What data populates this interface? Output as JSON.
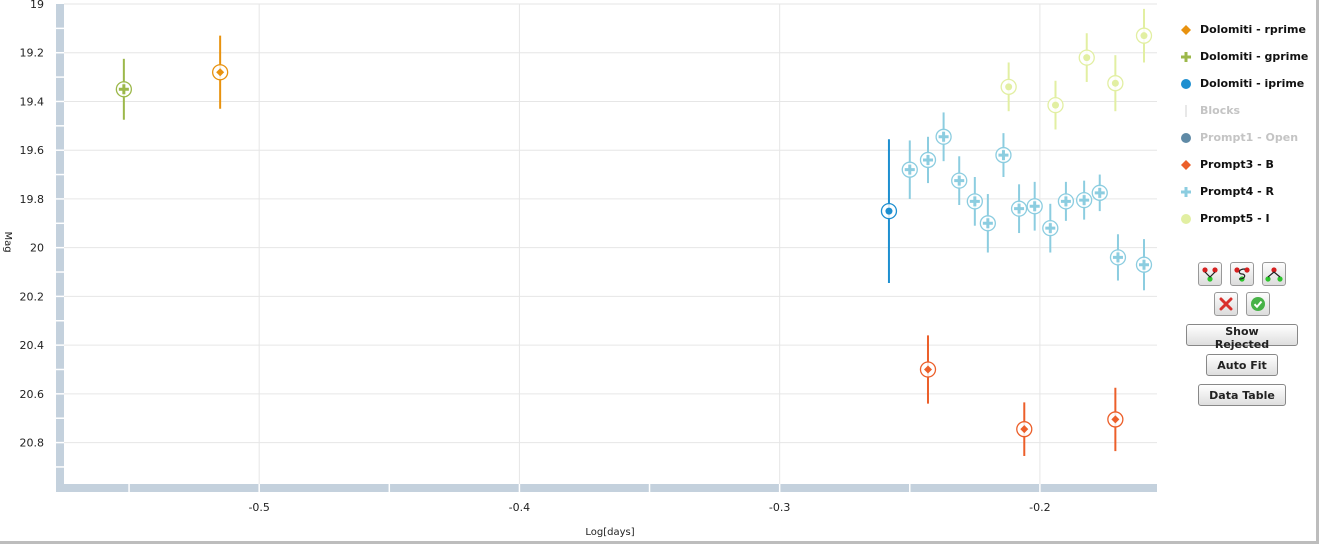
{
  "chart_data": {
    "type": "scatter",
    "xlabel": "Log[days]",
    "ylabel": "Mag",
    "xlim": [
      -0.575,
      -0.155
    ],
    "ylim": [
      19.0,
      20.97
    ],
    "y_inverted": true,
    "x_ticks": [
      -0.5,
      -0.4,
      -0.3,
      -0.2
    ],
    "x_tick_labels": [
      "-0.5",
      "-0.4",
      "-0.3",
      "-0.2"
    ],
    "y_ticks": [
      19.0,
      19.2,
      19.4,
      19.6,
      19.8,
      20.0,
      20.2,
      20.4,
      20.6,
      20.8
    ],
    "y_tick_labels": [
      "19",
      "19.2",
      "19.4",
      "19.6",
      "19.8",
      "20",
      "20.2",
      "20.4",
      "20.6",
      "20.8"
    ],
    "grid": true,
    "legend_position": "right",
    "series": [
      {
        "name": "Dolomiti - rprime",
        "color": "#e8920f",
        "marker": "diamond",
        "visible": true,
        "points": [
          {
            "x": -0.515,
            "y": 19.28,
            "err": 0.15
          }
        ]
      },
      {
        "name": "Dolomiti - gprime",
        "color": "#9cb84a",
        "marker": "plus",
        "visible": true,
        "points": [
          {
            "x": -0.552,
            "y": 19.35,
            "err": 0.125
          }
        ]
      },
      {
        "name": "Dolomiti - iprime",
        "color": "#1e8fd0",
        "marker": "circle",
        "visible": true,
        "points": [
          {
            "x": -0.258,
            "y": 19.85,
            "err": 0.295
          }
        ]
      },
      {
        "name": "Blocks",
        "color": "#d0d0d0",
        "marker": "line",
        "visible": false,
        "points": []
      },
      {
        "name": "Prompt1 - Open",
        "color": "#5f8aa6",
        "marker": "circle",
        "visible": false,
        "points": []
      },
      {
        "name": "Prompt3 - B",
        "color": "#ec5f2a",
        "marker": "diamond",
        "visible": true,
        "points": [
          {
            "x": -0.243,
            "y": 20.5,
            "err": 0.14
          },
          {
            "x": -0.206,
            "y": 20.745,
            "err": 0.11
          },
          {
            "x": -0.171,
            "y": 20.705,
            "err": 0.13
          }
        ]
      },
      {
        "name": "Prompt4 - R",
        "color": "#8ccde0",
        "marker": "plus",
        "visible": true,
        "points": [
          {
            "x": -0.25,
            "y": 19.68,
            "err": 0.12
          },
          {
            "x": -0.243,
            "y": 19.64,
            "err": 0.095
          },
          {
            "x": -0.237,
            "y": 19.545,
            "err": 0.1
          },
          {
            "x": -0.231,
            "y": 19.725,
            "err": 0.1
          },
          {
            "x": -0.225,
            "y": 19.81,
            "err": 0.1
          },
          {
            "x": -0.22,
            "y": 19.9,
            "err": 0.12
          },
          {
            "x": -0.214,
            "y": 19.62,
            "err": 0.09
          },
          {
            "x": -0.208,
            "y": 19.84,
            "err": 0.1
          },
          {
            "x": -0.202,
            "y": 19.83,
            "err": 0.1
          },
          {
            "x": -0.196,
            "y": 19.92,
            "err": 0.1
          },
          {
            "x": -0.19,
            "y": 19.81,
            "err": 0.08
          },
          {
            "x": -0.183,
            "y": 19.805,
            "err": 0.08
          },
          {
            "x": -0.177,
            "y": 19.775,
            "err": 0.075
          },
          {
            "x": -0.17,
            "y": 20.04,
            "err": 0.095
          },
          {
            "x": -0.16,
            "y": 20.07,
            "err": 0.105
          }
        ]
      },
      {
        "name": "Prompt5 - I",
        "color": "#e2efa2",
        "marker": "circle",
        "visible": true,
        "points": [
          {
            "x": -0.212,
            "y": 19.34,
            "err": 0.1
          },
          {
            "x": -0.194,
            "y": 19.415,
            "err": 0.1
          },
          {
            "x": -0.182,
            "y": 19.22,
            "err": 0.1
          },
          {
            "x": -0.171,
            "y": 19.325,
            "err": 0.115
          },
          {
            "x": -0.16,
            "y": 19.13,
            "err": 0.11
          }
        ]
      }
    ]
  },
  "legend": {
    "items": [
      {
        "label": "Dolomiti - rprime"
      },
      {
        "label": "Dolomiti - gprime"
      },
      {
        "label": "Dolomiti - iprime"
      },
      {
        "label": "Blocks"
      },
      {
        "label": "Prompt1 - Open"
      },
      {
        "label": "Prompt3 - B"
      },
      {
        "label": "Prompt4 - R"
      },
      {
        "label": "Prompt5 - I"
      }
    ]
  },
  "tools": {
    "icons": [
      "fit-model-1-icon",
      "fit-model-2-icon",
      "fit-model-3-icon"
    ],
    "reject_icon": "red-x-icon",
    "accept_icon": "green-check-icon",
    "show_rejected_label": "Show Rejected",
    "auto_fit_label": "Auto Fit",
    "data_table_label": "Data Table"
  }
}
